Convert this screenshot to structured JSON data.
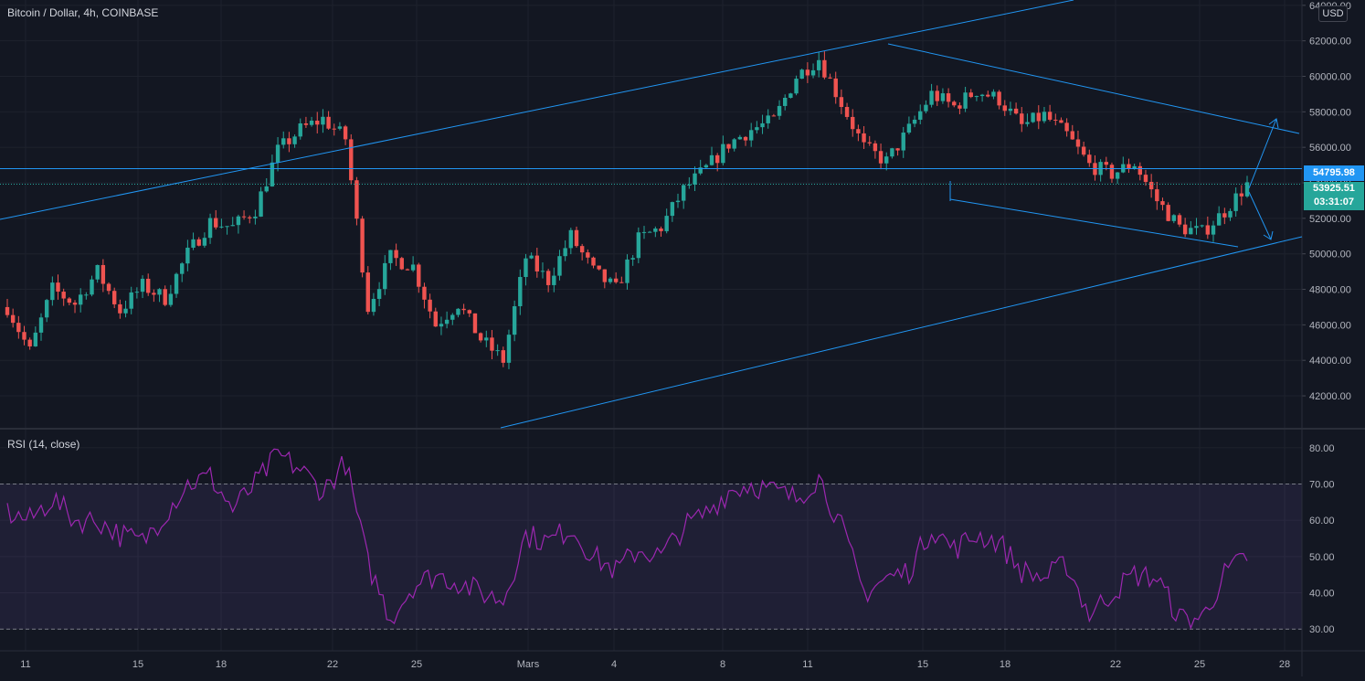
{
  "header": {
    "title": "Bitcoin / Dollar, 4h, COINBASE",
    "currency": "USD"
  },
  "rsi": {
    "label": "RSI (14, close)"
  },
  "price_labels": {
    "hline_value": "54795.98",
    "last_price": "53925.51",
    "countdown": "03:31:07"
  },
  "colors": {
    "background": "#131722",
    "up": "#26a69a",
    "down": "#ef5350",
    "drawing": "#2196f3",
    "rsi": "#9c27b0"
  },
  "chart_data": [
    {
      "type": "candlestick",
      "title": "Bitcoin / Dollar, 4h, COINBASE",
      "x_tick_labels": [
        "11",
        "15",
        "18",
        "22",
        "25",
        "Mars",
        "4",
        "8",
        "11",
        "15",
        "18",
        "22",
        "25",
        "28"
      ],
      "y_tick_labels": [
        "42000.00",
        "44000.00",
        "46000.00",
        "48000.00",
        "50000.00",
        "52000.00",
        "54000.00",
        "56000.00",
        "58000.00",
        "60000.00",
        "62000.00",
        "64000.00"
      ],
      "ylim": [
        40200,
        64300
      ],
      "horizontal_line": 54795.98,
      "last_price": 53925.51,
      "grid": true,
      "series": [
        {
          "name": "Bitcoin / Dollar",
          "close_anchors": [
            [
              0,
              47000
            ],
            [
              12,
              44500
            ],
            [
              24,
              48000
            ],
            [
              36,
              47200
            ],
            [
              48,
              49000
            ],
            [
              60,
              46800
            ],
            [
              72,
              48200
            ],
            [
              84,
              47500
            ],
            [
              96,
              50000
            ],
            [
              108,
              51800
            ],
            [
              120,
              51500
            ],
            [
              132,
              52500
            ],
            [
              144,
              55800
            ],
            [
              156,
              57000
            ],
            [
              168,
              57600
            ],
            [
              180,
              56500
            ],
            [
              192,
              47000
            ],
            [
              204,
              49800
            ],
            [
              216,
              49300
            ],
            [
              228,
              46000
            ],
            [
              240,
              47200
            ],
            [
              252,
              45200
            ],
            [
              264,
              44000
            ],
            [
              276,
              49800
            ],
            [
              288,
              48500
            ],
            [
              300,
              51000
            ],
            [
              312,
              49000
            ],
            [
              324,
              48000
            ],
            [
              336,
              50800
            ],
            [
              348,
              51500
            ],
            [
              360,
              53600
            ],
            [
              372,
              54800
            ],
            [
              384,
              56200
            ],
            [
              396,
              57000
            ],
            [
              408,
              57500
            ],
            [
              420,
              60000
            ],
            [
              432,
              61000
            ],
            [
              444,
              58500
            ],
            [
              456,
              56000
            ],
            [
              468,
              55200
            ],
            [
              480,
              57000
            ],
            [
              492,
              59000
            ],
            [
              504,
              58300
            ],
            [
              516,
              59200
            ],
            [
              528,
              58700
            ],
            [
              540,
              57200
            ],
            [
              552,
              57800
            ],
            [
              564,
              56700
            ],
            [
              576,
              55000
            ],
            [
              588,
              54500
            ],
            [
              600,
              55100
            ],
            [
              612,
              53000
            ],
            [
              624,
              51500
            ],
            [
              636,
              51200
            ],
            [
              648,
              52400
            ],
            [
              660,
              53926
            ]
          ]
        }
      ]
    },
    {
      "type": "line",
      "title": "RSI (14, close)",
      "y_tick_labels": [
        "30.00",
        "40.00",
        "50.00",
        "60.00",
        "70.00",
        "80.00"
      ],
      "ylim": [
        24,
        85
      ],
      "bands": [
        30,
        70
      ],
      "series": [
        {
          "name": "RSI (14, close)",
          "points": [
            [
              0,
              62
            ],
            [
              12,
              60
            ],
            [
              24,
              66
            ],
            [
              36,
              60
            ],
            [
              48,
              60
            ],
            [
              60,
              56
            ],
            [
              72,
              54
            ],
            [
              84,
              62
            ],
            [
              96,
              70
            ],
            [
              108,
              72
            ],
            [
              120,
              63
            ],
            [
              132,
              70
            ],
            [
              144,
              78
            ],
            [
              156,
              74
            ],
            [
              168,
              68
            ],
            [
              180,
              76
            ],
            [
              192,
              48
            ],
            [
              204,
              33
            ],
            [
              216,
              42
            ],
            [
              228,
              45
            ],
            [
              240,
              43
            ],
            [
              252,
              40
            ],
            [
              264,
              38
            ],
            [
              276,
              56
            ],
            [
              288,
              54
            ],
            [
              300,
              58
            ],
            [
              312,
              50
            ],
            [
              324,
              46
            ],
            [
              336,
              52
            ],
            [
              348,
              50
            ],
            [
              360,
              58
            ],
            [
              372,
              62
            ],
            [
              384,
              68
            ],
            [
              396,
              70
            ],
            [
              408,
              68
            ],
            [
              420,
              66
            ],
            [
              432,
              72
            ],
            [
              444,
              58
            ],
            [
              456,
              40
            ],
            [
              468,
              44
            ],
            [
              480,
              46
            ],
            [
              492,
              58
            ],
            [
              504,
              52
            ],
            [
              516,
              56
            ],
            [
              528,
              54
            ],
            [
              540,
              46
            ],
            [
              552,
              44
            ],
            [
              564,
              48
            ],
            [
              576,
              34
            ],
            [
              588,
              40
            ],
            [
              600,
              45
            ],
            [
              612,
              44
            ],
            [
              624,
              33
            ],
            [
              636,
              33
            ],
            [
              648,
              45
            ],
            [
              660,
              50
            ]
          ]
        }
      ]
    }
  ]
}
